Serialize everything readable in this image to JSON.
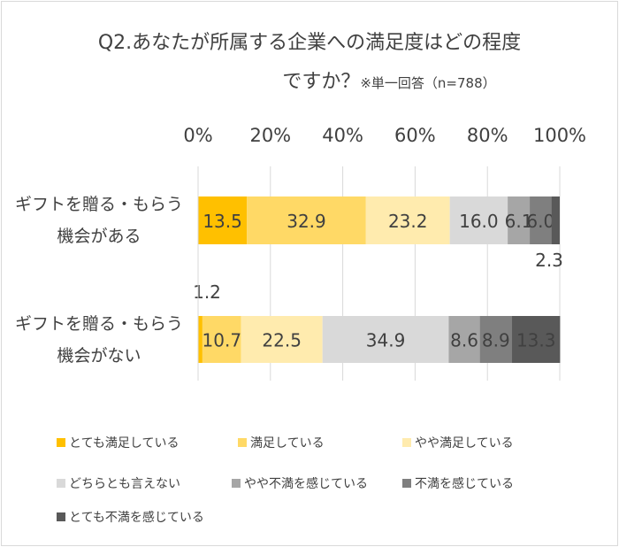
{
  "chart_data": {
    "type": "bar",
    "orientation": "horizontal-stacked-100",
    "title": "Q2.あなたが所属する企業への満足度はどの程度",
    "title_line2": "ですか？",
    "subtitle": "※単一回答（n=788）",
    "categories": [
      "ギフトを贈る・もらう\n機会がある",
      "ギフトを贈る・もらう\n機会がない"
    ],
    "category_lines": [
      [
        "ギフトを贈る・もらう",
        "機会がある"
      ],
      [
        "ギフトを贈る・もらう",
        "機会がない"
      ]
    ],
    "xlim": [
      0,
      100
    ],
    "xticks": [
      "0%",
      "20%",
      "40%",
      "60%",
      "80%",
      "100%"
    ],
    "grid": true,
    "legend_position": "bottom",
    "series": [
      {
        "name": "とても満足している",
        "color": "#FFC000",
        "values": [
          13.5,
          1.2
        ]
      },
      {
        "name": "満足している",
        "color": "#FFD966",
        "values": [
          32.9,
          10.7
        ]
      },
      {
        "name": "やや満足している",
        "color": "#FFEBAE",
        "values": [
          23.2,
          22.5
        ]
      },
      {
        "name": "どちらとも言えない",
        "color": "#D9D9D9",
        "values": [
          16.0,
          34.9
        ]
      },
      {
        "name": "やや不満を感じている",
        "color": "#A6A6A6",
        "values": [
          6.1,
          8.6
        ]
      },
      {
        "name": "不満を感じている",
        "color": "#7F7F7F",
        "values": [
          6.0,
          8.9
        ]
      },
      {
        "name": "とても不満を感じている",
        "color": "#595959",
        "values": [
          2.3,
          13.3
        ]
      }
    ]
  }
}
